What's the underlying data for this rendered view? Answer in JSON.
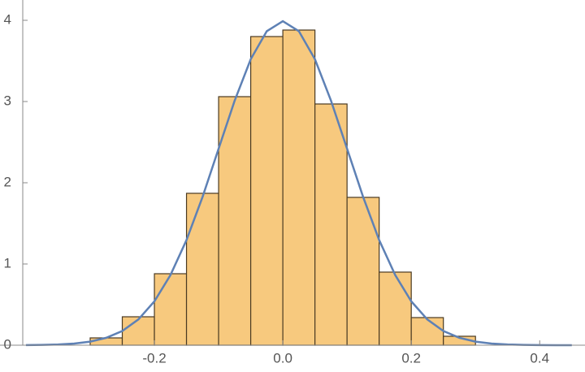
{
  "chart_data": {
    "type": "histogram",
    "bins": [
      -0.3,
      -0.25,
      -0.2,
      -0.15,
      -0.1,
      -0.05,
      0,
      0.05,
      0.1,
      0.15,
      0.2,
      0.25,
      0.3
    ],
    "values": [
      0.09,
      0.35,
      0.88,
      1.87,
      3.06,
      3.8,
      3.88,
      2.97,
      1.82,
      0.9,
      0.34,
      0.11
    ],
    "color": "#f7c97e",
    "curve": {
      "color": "#5e81b5",
      "x": [
        -0.4,
        -0.375,
        -0.35,
        -0.325,
        -0.3,
        -0.275,
        -0.25,
        -0.225,
        -0.2,
        -0.175,
        -0.15,
        -0.125,
        -0.1,
        -0.075,
        -0.05,
        -0.025,
        0,
        0.025,
        0.05,
        0.075,
        0.1,
        0.125,
        0.15,
        0.175,
        0.2,
        0.225,
        0.25,
        0.275,
        0.3,
        0.325,
        0.35,
        0.375,
        0.4,
        0.425,
        0.45
      ],
      "values": [
        0.001,
        0.004,
        0.009,
        0.02,
        0.044,
        0.091,
        0.175,
        0.317,
        0.54,
        0.863,
        1.295,
        1.826,
        2.42,
        3.011,
        3.521,
        3.866,
        3.989,
        3.866,
        3.521,
        3.011,
        2.42,
        1.826,
        1.295,
        0.863,
        0.54,
        0.317,
        0.175,
        0.091,
        0.044,
        0.02,
        0.009,
        0.004,
        0.001,
        0,
        0
      ]
    },
    "xlim": [
      -0.405,
      0.468
    ],
    "ylim": [
      0,
      4.05
    ],
    "xticks": [
      -0.2,
      {
        "value": 0,
        "label": "0.0"
      },
      0.2,
      0.4
    ],
    "yticks": [
      0,
      1,
      2,
      3,
      4
    ]
  }
}
